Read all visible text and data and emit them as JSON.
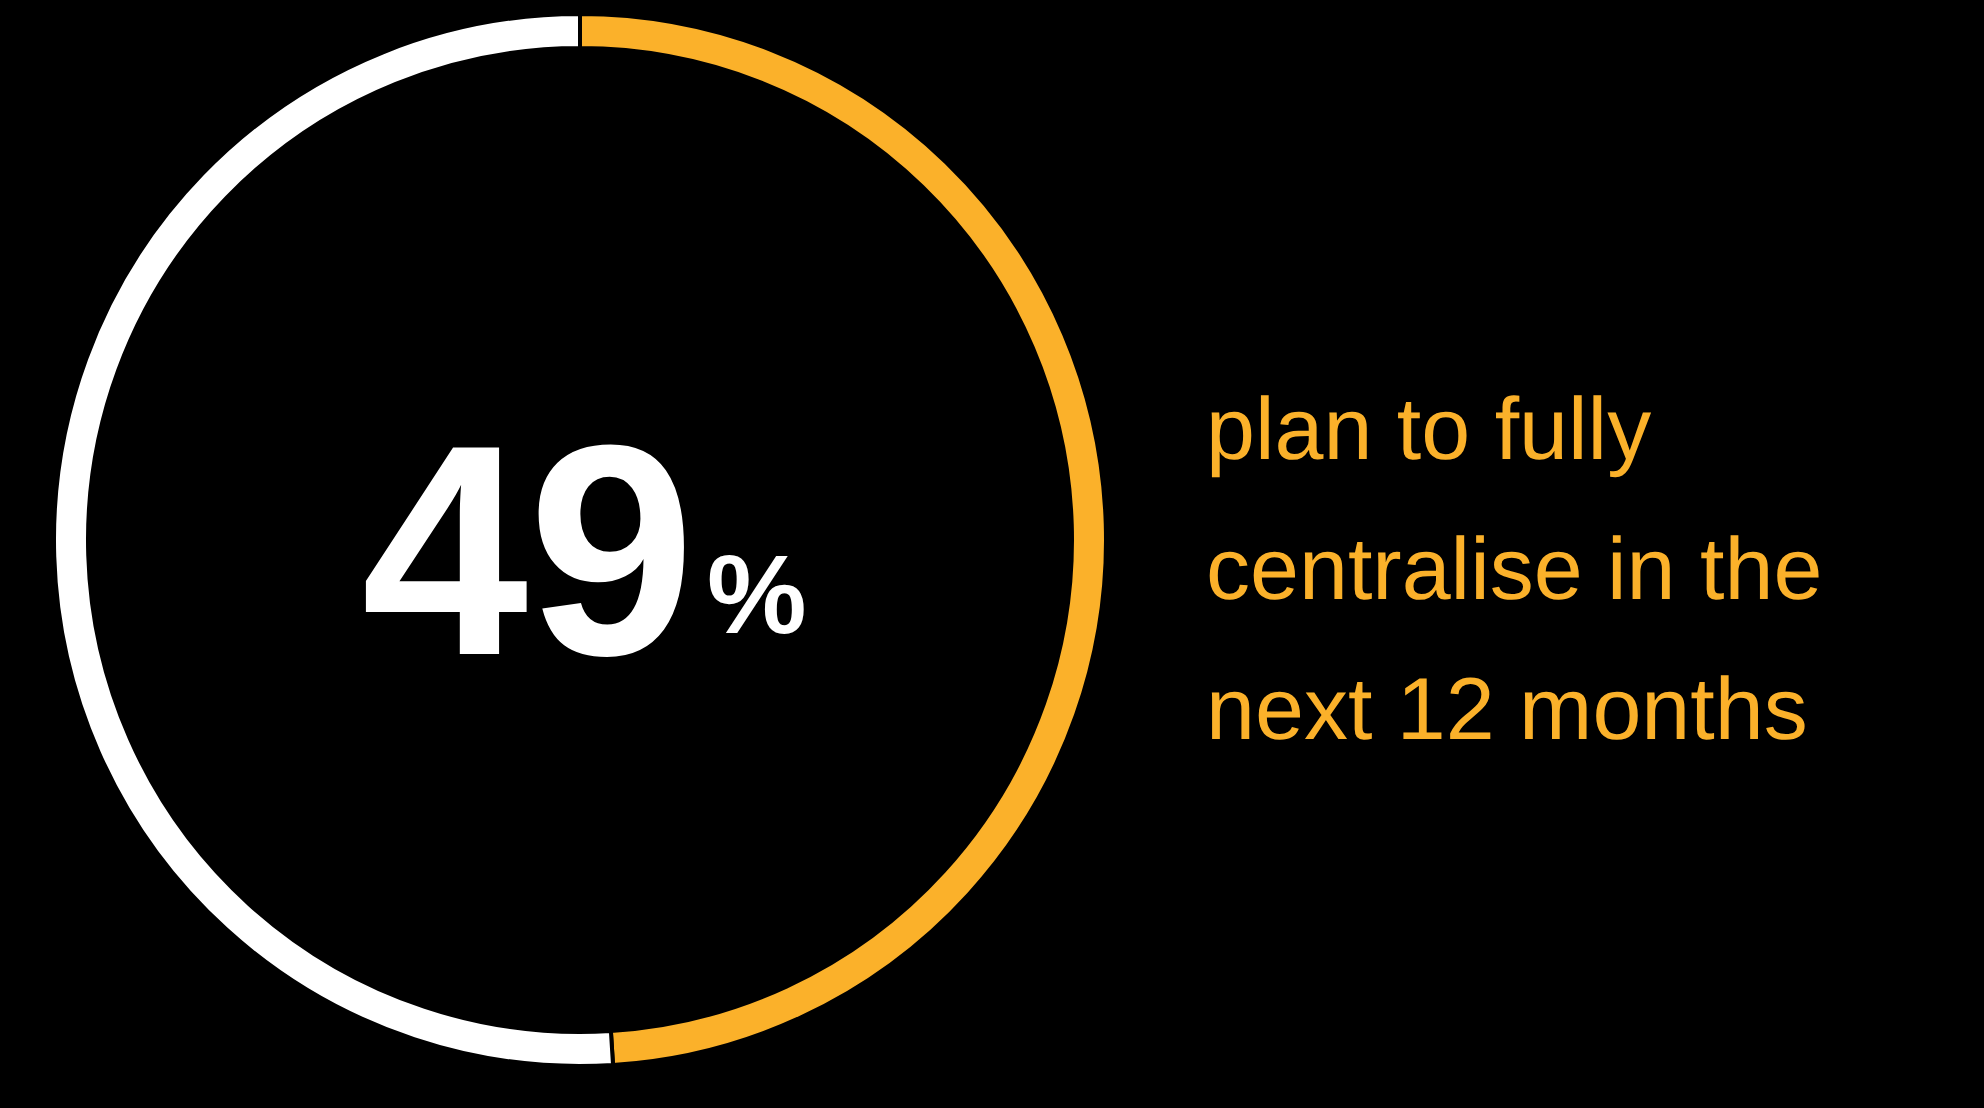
{
  "chart_data": {
    "type": "donut",
    "title": "49%",
    "categories": [
      null,
      null
    ],
    "values": [
      49,
      51
    ],
    "colors": [
      "#fbb12a",
      "#ffffff"
    ],
    "annotations": [
      "plan to fully centralise in the next 12 months"
    ]
  }
}
